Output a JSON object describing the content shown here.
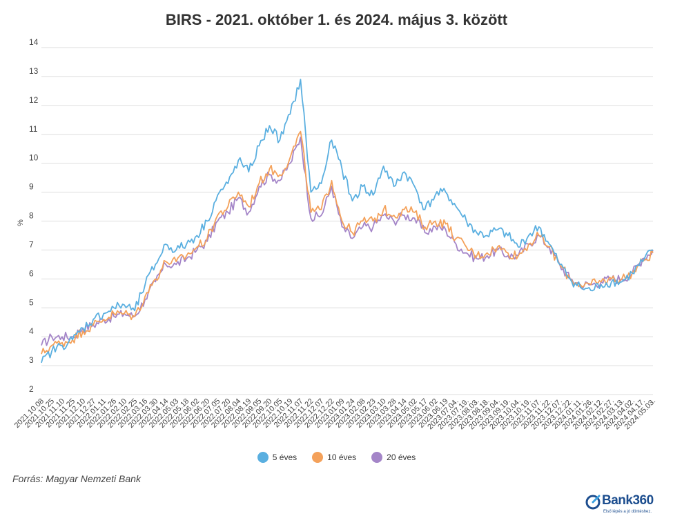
{
  "title": "BIRS - 2021. október 1. és 2024. május 3. között",
  "source": "Forrás: Magyar Nemzeti Bank",
  "logo": {
    "name": "Bank360",
    "tagline": "Első lépés a jó döntéshez."
  },
  "chart_data": {
    "type": "line",
    "ylabel": "%",
    "ylim": [
      2,
      14
    ],
    "yticks": [
      2,
      3,
      4,
      5,
      6,
      7,
      8,
      9,
      10,
      11,
      12,
      13,
      14
    ],
    "grid": true,
    "legend_position": "bottom",
    "x_tick_labels": [
      "2021.10.08",
      "2021.10.25",
      "2021.11.10",
      "2021.11.25",
      "2021.12.10",
      "2021.12.27",
      "2022.01.11",
      "2022.01.26",
      "2022.02.10",
      "2022.02.25",
      "2022.03.16",
      "2022.03.30",
      "2022.04.14",
      "2022.05.03",
      "2022.05.18",
      "2022.06.02",
      "2022.06.20",
      "2022.07.05",
      "2022.07.20",
      "2022.08.04",
      "2022.08.19",
      "2022.09.05",
      "2022.09.20",
      "2022.10.05",
      "2022.10.19",
      "2022.11.07",
      "2022.11.22",
      "2022.12.07",
      "2022.12.22",
      "2023.01.09",
      "2023.01.24",
      "2023.02.08",
      "2023.02.23",
      "2023.03.10",
      "2023.03.28",
      "2023.04.14",
      "2023.05.02",
      "2023.05.17",
      "2023.06.02",
      "2023.06.19",
      "2023.07.04.",
      "2023.07.19.",
      "2023.08.03.",
      "2023.08.18.",
      "2023.09.04.",
      "2023.09.19.",
      "2023.10.04.",
      "2023.10.19.",
      "2023.11.07.",
      "2023.11.22.",
      "2023.12.07.",
      "2023.12.22.",
      "2024.01.11.",
      "2024.01.26.",
      "2024.02.12.",
      "2024.02.27.",
      "2024.03.13.",
      "2024.04.02.",
      "2024.04.17.",
      "2024.05.03."
    ],
    "x": [
      "2021.10.08",
      "2021.10.25",
      "2021.11.10",
      "2021.11.25",
      "2021.12.10",
      "2021.12.27",
      "2022.01.11",
      "2022.01.26",
      "2022.02.10",
      "2022.02.25",
      "2022.03.16",
      "2022.03.30",
      "2022.04.14",
      "2022.05.03",
      "2022.05.18",
      "2022.06.02",
      "2022.06.20",
      "2022.07.05",
      "2022.07.20",
      "2022.08.04",
      "2022.08.19",
      "2022.09.05",
      "2022.09.20",
      "2022.10.05",
      "2022.10.19",
      "2022.11.07",
      "2022.11.22",
      "2022.12.07",
      "2022.12.22",
      "2023.01.09",
      "2023.01.24",
      "2023.02.08",
      "2023.02.23",
      "2023.03.10",
      "2023.03.28",
      "2023.04.14",
      "2023.05.02",
      "2023.05.17",
      "2023.06.02",
      "2023.06.19",
      "2023.07.04",
      "2023.07.19",
      "2023.08.03",
      "2023.08.18",
      "2023.09.04",
      "2023.09.19",
      "2023.10.04",
      "2023.10.19",
      "2023.11.07",
      "2023.11.22",
      "2023.12.07",
      "2023.12.22",
      "2024.01.11",
      "2024.01.26",
      "2024.02.12",
      "2024.02.27",
      "2024.03.13",
      "2024.04.02",
      "2024.04.17",
      "2024.05.03"
    ],
    "series": [
      {
        "name": "5 éves",
        "color": "#5aafe0",
        "values": [
          3.1,
          3.5,
          3.7,
          3.9,
          4.3,
          4.6,
          4.8,
          5.0,
          5.1,
          4.9,
          5.8,
          6.5,
          7.2,
          7.0,
          7.2,
          7.5,
          8.0,
          8.9,
          9.3,
          10.1,
          9.7,
          10.6,
          11.3,
          10.8,
          11.7,
          12.9,
          9.0,
          9.3,
          10.8,
          9.8,
          8.7,
          9.2,
          8.9,
          9.9,
          9.2,
          9.7,
          9.2,
          8.4,
          8.9,
          9.0,
          8.5,
          8.0,
          7.6,
          7.5,
          7.7,
          7.5,
          7.1,
          7.5,
          7.8,
          7.2,
          6.5,
          6.0,
          5.7,
          5.6,
          5.8,
          5.9,
          5.9,
          6.2,
          6.6,
          7.0
        ]
      },
      {
        "name": "10 éves",
        "color": "#f4a15a",
        "values": [
          3.4,
          3.7,
          3.8,
          3.9,
          4.2,
          4.4,
          4.6,
          4.8,
          4.8,
          4.7,
          5.4,
          6.0,
          6.6,
          6.6,
          6.8,
          7.1,
          7.4,
          8.2,
          8.5,
          9.0,
          8.5,
          9.3,
          9.8,
          9.6,
          10.2,
          11.1,
          8.3,
          8.4,
          9.4,
          8.0,
          7.6,
          8.0,
          8.0,
          8.4,
          8.2,
          8.4,
          8.3,
          7.8,
          8.0,
          7.9,
          7.4,
          7.1,
          6.8,
          6.9,
          7.1,
          6.9,
          6.8,
          7.2,
          7.5,
          7.1,
          6.5,
          6.0,
          5.8,
          5.8,
          5.9,
          6.0,
          6.0,
          6.2,
          6.6,
          6.9
        ]
      },
      {
        "name": "20 éves",
        "color": "#a485c8",
        "values": [
          3.7,
          4.0,
          4.0,
          4.0,
          4.3,
          4.4,
          4.6,
          4.7,
          4.8,
          4.7,
          5.3,
          5.9,
          6.5,
          6.5,
          6.7,
          7.0,
          7.3,
          8.0,
          8.3,
          8.8,
          8.3,
          9.2,
          9.6,
          9.4,
          10.0,
          10.9,
          8.1,
          8.2,
          9.2,
          7.8,
          7.4,
          7.8,
          7.8,
          8.2,
          8.0,
          8.2,
          8.1,
          7.6,
          7.8,
          7.7,
          7.2,
          6.9,
          6.7,
          6.8,
          7.0,
          6.8,
          6.8,
          7.2,
          7.5,
          7.1,
          6.5,
          6.0,
          5.8,
          5.8,
          5.9,
          6.0,
          6.0,
          6.2,
          6.7,
          7.0
        ]
      }
    ]
  }
}
